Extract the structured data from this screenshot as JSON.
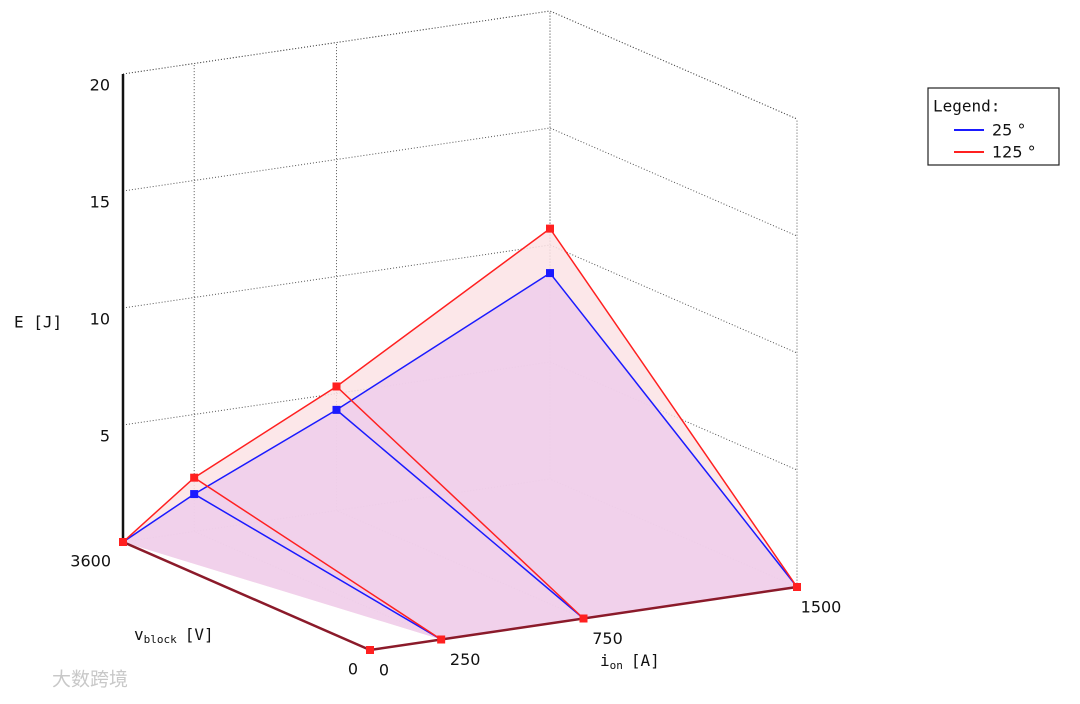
{
  "chart_data": {
    "type": "surface3d",
    "x_axis": {
      "label": "i",
      "label_sub": "on",
      "label_unit": "[A]"
    },
    "v_axis": {
      "label": "v",
      "label_sub": "block",
      "label_unit": "[V]"
    },
    "z_axis": {
      "label": "E [J]"
    },
    "x": [
      0,
      250,
      750,
      1500
    ],
    "xlim": [
      0,
      1500
    ],
    "xticks": [
      0,
      250,
      750,
      1500
    ],
    "vlim": [
      0,
      3600
    ],
    "vticks": [
      0,
      3600
    ],
    "zlim": [
      0,
      20
    ],
    "zticks": [
      5,
      10,
      15,
      20
    ],
    "grid": true,
    "legend": {
      "title": "Legend:",
      "position": "right"
    },
    "series": [
      {
        "name": "25 °",
        "color": "#1a1aff",
        "fill": "#eecdeb",
        "values": [
          0,
          1.6,
          4.3,
          8.8
        ]
      },
      {
        "name": "125 °",
        "color": "#ff2020",
        "fill": "#fbe3e5",
        "values": [
          0,
          2.3,
          5.3,
          10.7
        ]
      }
    ],
    "watermark": "大数跨境"
  }
}
